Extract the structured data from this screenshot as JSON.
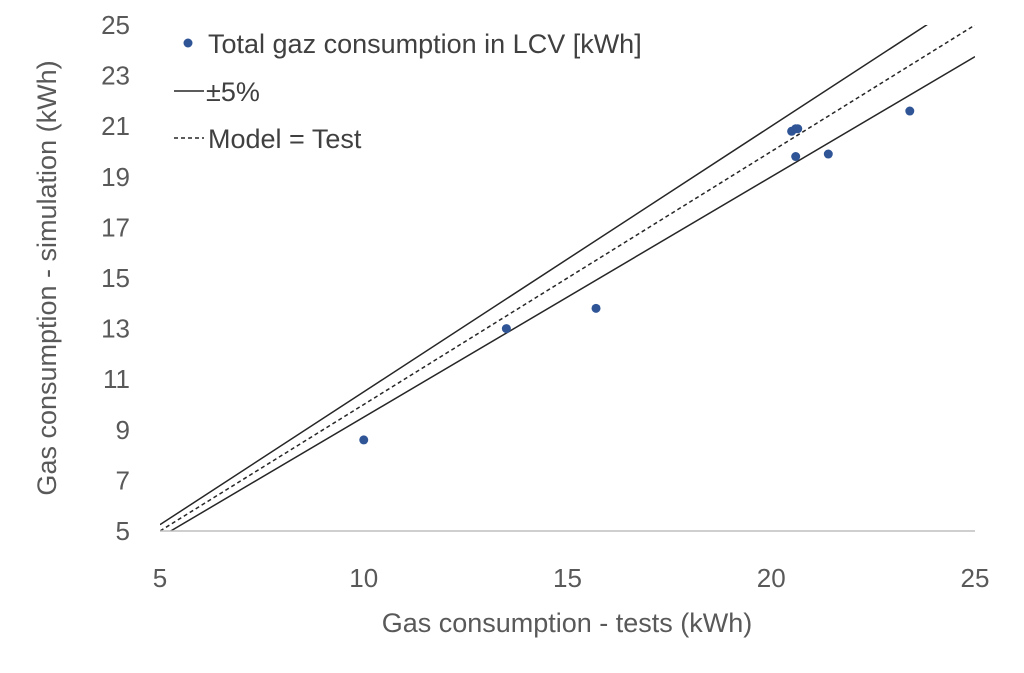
{
  "chart_data": {
    "type": "scatter",
    "xlabel": "Gas consumption - tests (kWh)",
    "ylabel": "Gas consumption - simulation (kWh)",
    "xlim": [
      5,
      25
    ],
    "ylim": [
      5,
      25
    ],
    "x_ticks": [
      "5",
      "10",
      "15",
      "20",
      "25"
    ],
    "y_ticks": [
      "5",
      "7",
      "9",
      "11",
      "13",
      "15",
      "17",
      "19",
      "21",
      "23",
      "25"
    ],
    "grid": false,
    "legend_position": "top-left",
    "series": [
      {
        "name": "Total gaz consumption in LCV [kWh]",
        "kind": "points",
        "color": "#2F5597",
        "x": [
          10.0,
          13.5,
          15.7,
          20.5,
          20.6,
          20.65,
          20.6,
          21.4,
          23.4
        ],
        "y": [
          8.6,
          13.0,
          13.8,
          20.8,
          20.9,
          20.9,
          19.8,
          19.9,
          21.6
        ]
      },
      {
        "name": "±5%",
        "kind": "line",
        "color": "#262626",
        "dash": "solid",
        "lines": [
          {
            "slope": 1.05,
            "x_range": [
              5,
              25
            ]
          },
          {
            "slope": 0.95,
            "x_range": [
              5,
              25
            ]
          }
        ]
      },
      {
        "name": "Model = Test",
        "kind": "line",
        "color": "#262626",
        "dash": "dashed",
        "lines": [
          {
            "slope": 1.0,
            "x_range": [
              5,
              25
            ]
          }
        ]
      }
    ]
  }
}
